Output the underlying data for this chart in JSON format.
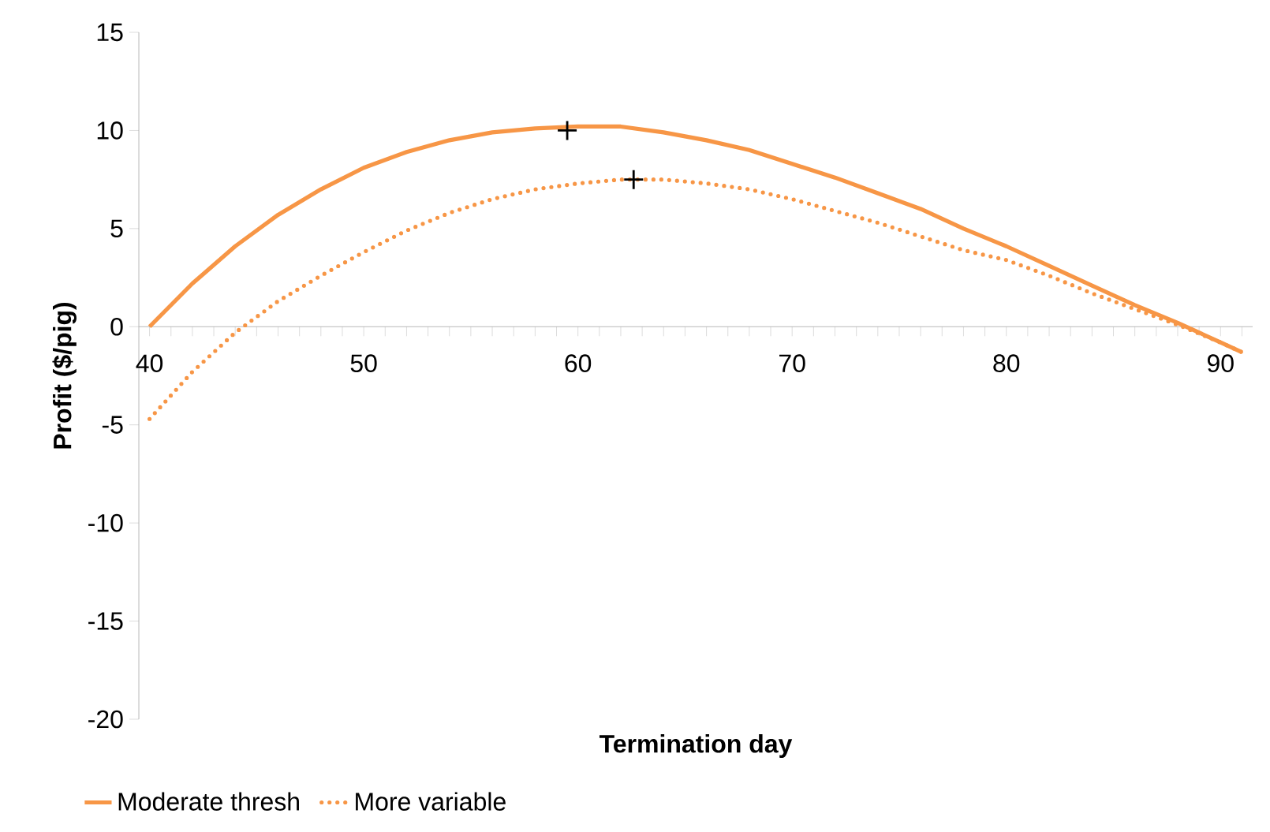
{
  "chart_data": {
    "type": "line",
    "xlabel": "Termination day",
    "ylabel": "Profit ($/pig)",
    "xlim": [
      39.5,
      91.5
    ],
    "ylim": [
      -20,
      15
    ],
    "xticks": [
      40,
      {
        "value": 41,
        "label": null
      },
      {
        "value": 42,
        "label": null
      },
      {
        "value": 43,
        "label": null
      },
      {
        "value": 44,
        "label": null
      },
      {
        "value": 45,
        "label": null
      },
      {
        "value": 46,
        "label": null
      },
      {
        "value": 47,
        "label": null
      },
      {
        "value": 48,
        "label": null
      },
      {
        "value": 49,
        "label": null
      },
      50,
      {
        "value": 51,
        "label": null
      },
      {
        "value": 52,
        "label": null
      },
      {
        "value": 53,
        "label": null
      },
      {
        "value": 54,
        "label": null
      },
      {
        "value": 55,
        "label": null
      },
      {
        "value": 56,
        "label": null
      },
      {
        "value": 57,
        "label": null
      },
      {
        "value": 58,
        "label": null
      },
      {
        "value": 59,
        "label": null
      },
      60,
      {
        "value": 61,
        "label": null
      },
      {
        "value": 62,
        "label": null
      },
      {
        "value": 63,
        "label": null
      },
      {
        "value": 64,
        "label": null
      },
      {
        "value": 65,
        "label": null
      },
      {
        "value": 66,
        "label": null
      },
      {
        "value": 67,
        "label": null
      },
      {
        "value": 68,
        "label": null
      },
      {
        "value": 69,
        "label": null
      },
      70,
      {
        "value": 71,
        "label": null
      },
      {
        "value": 72,
        "label": null
      },
      {
        "value": 73,
        "label": null
      },
      {
        "value": 74,
        "label": null
      },
      {
        "value": 75,
        "label": null
      },
      {
        "value": 76,
        "label": null
      },
      {
        "value": 77,
        "label": null
      },
      {
        "value": 78,
        "label": null
      },
      {
        "value": 79,
        "label": null
      },
      80,
      {
        "value": 81,
        "label": null
      },
      {
        "value": 82,
        "label": null
      },
      {
        "value": 83,
        "label": null
      },
      {
        "value": 84,
        "label": null
      },
      {
        "value": 85,
        "label": null
      },
      {
        "value": 86,
        "label": null
      },
      {
        "value": 87,
        "label": null
      },
      {
        "value": 88,
        "label": null
      },
      {
        "value": 89,
        "label": null
      },
      90,
      {
        "value": 91,
        "label": null
      }
    ],
    "yticks": [
      -20,
      -15,
      -10,
      -5,
      0,
      5,
      10,
      15
    ],
    "x": [
      40,
      42,
      44,
      46,
      48,
      50,
      52,
      54,
      56,
      58,
      60,
      62,
      64,
      66,
      68,
      70,
      72,
      74,
      76,
      78,
      80,
      82,
      84,
      86,
      88,
      90,
      91
    ],
    "legend": "bottom left",
    "series": [
      {
        "name": "Moderate thresh",
        "color": "#f79646",
        "line_style": "solid",
        "values": [
          0,
          2.2,
          4.1,
          5.7,
          7.0,
          8.1,
          8.9,
          9.5,
          9.9,
          10.1,
          10.2,
          10.2,
          9.9,
          9.5,
          9.0,
          8.3,
          7.6,
          6.8,
          6.0,
          5.0,
          4.1,
          3.1,
          2.1,
          1.1,
          0.2,
          -0.8,
          -1.3
        ]
      },
      {
        "name": "More variable",
        "color": "#f79646",
        "line_style": "dotted",
        "values": [
          -4.7,
          -2.3,
          -0.3,
          1.3,
          2.6,
          3.8,
          4.9,
          5.8,
          6.5,
          7.0,
          7.3,
          7.5,
          7.5,
          7.3,
          7.0,
          6.5,
          5.9,
          5.3,
          4.6,
          3.9,
          3.4,
          2.6,
          1.7,
          0.9,
          0.1,
          -0.8,
          -1.3
        ]
      },
      {
        "type": "scatter",
        "marker": "cross",
        "color": "#000000",
        "x": [
          59.5,
          62.6
        ],
        "values": [
          10.0,
          7.5
        ]
      }
    ]
  }
}
